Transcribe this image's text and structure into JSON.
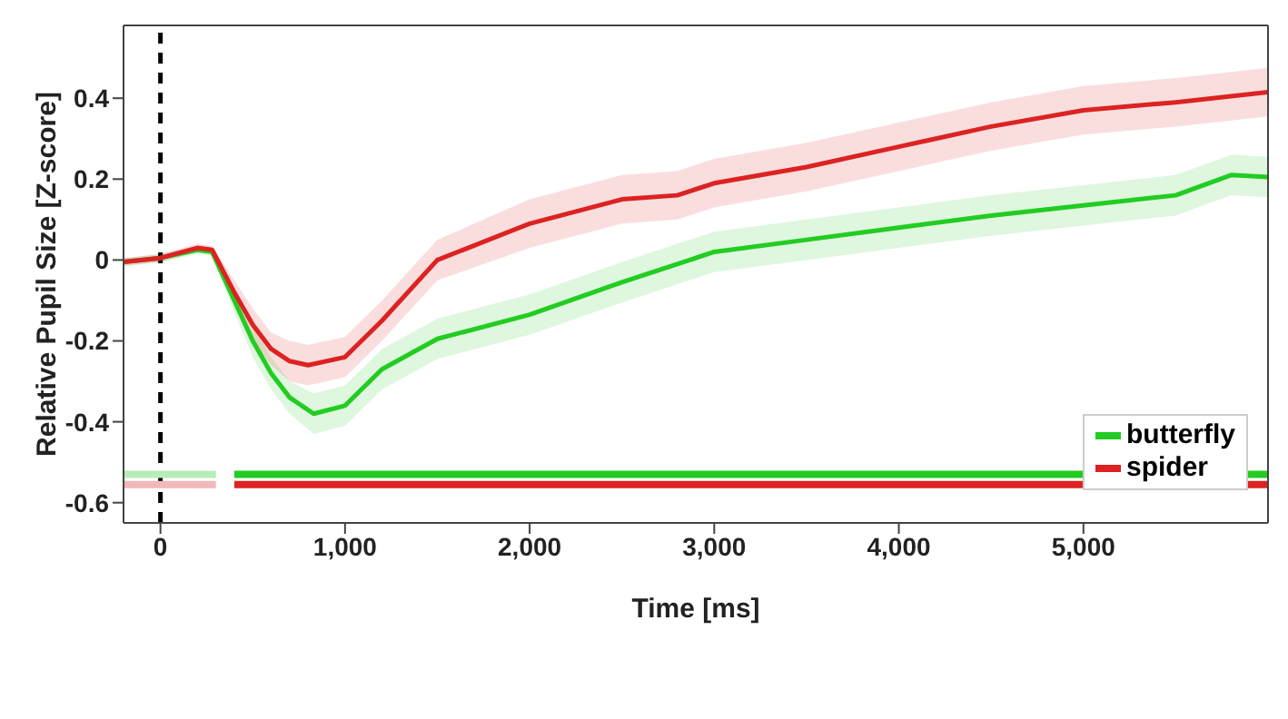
{
  "chart_data": {
    "type": "line",
    "xlabel": "Time [ms]",
    "ylabel": "Relative Pupil Size [Z-score]",
    "xlim": [
      -200,
      6000
    ],
    "xticks": [
      {
        "value": 0,
        "label": "0"
      },
      {
        "value": 1000,
        "label": "1,000"
      },
      {
        "value": 2000,
        "label": "2,000"
      },
      {
        "value": 3000,
        "label": "3,000"
      },
      {
        "value": 4000,
        "label": "4,000"
      },
      {
        "value": 5000,
        "label": "5,000"
      }
    ],
    "ylim": [
      -0.65,
      0.58
    ],
    "yticks": [
      -0.6,
      -0.4,
      -0.2,
      0,
      0.2,
      0.4
    ],
    "grid": false,
    "legend": "right",
    "line_style": "solid",
    "marker": "none",
    "ref_lines": [
      {
        "axis": "x",
        "value": 0,
        "color": "#000000",
        "line_style": "dashed"
      }
    ],
    "series": [
      {
        "name": "butterfly",
        "color": "#22cc22",
        "x": [
          -200,
          0,
          200,
          280,
          400,
          500,
          600,
          700,
          830,
          1000,
          1200,
          1500,
          2000,
          2500,
          3000,
          3500,
          4000,
          4500,
          5000,
          5500,
          5800,
          6000
        ],
        "values": [
          -0.005,
          0.005,
          0.025,
          0.02,
          -0.1,
          -0.2,
          -0.28,
          -0.34,
          -0.38,
          -0.36,
          -0.27,
          -0.195,
          -0.135,
          -0.055,
          0.02,
          0.05,
          0.08,
          0.11,
          0.135,
          0.16,
          0.21,
          0.205
        ],
        "lower": [
          -0.015,
          -0.005,
          0.015,
          0.01,
          -0.13,
          -0.24,
          -0.32,
          -0.38,
          -0.43,
          -0.41,
          -0.32,
          -0.245,
          -0.185,
          -0.105,
          -0.03,
          0.0,
          0.03,
          0.06,
          0.085,
          0.11,
          0.16,
          0.155
        ],
        "upper": [
          0.005,
          0.015,
          0.035,
          0.03,
          -0.07,
          -0.16,
          -0.24,
          -0.3,
          -0.33,
          -0.31,
          -0.22,
          -0.145,
          -0.085,
          -0.005,
          0.07,
          0.1,
          0.13,
          0.16,
          0.185,
          0.21,
          0.26,
          0.255
        ]
      },
      {
        "name": "spider",
        "color": "#dd2222",
        "x": [
          -200,
          0,
          200,
          280,
          400,
          500,
          600,
          700,
          800,
          1000,
          1200,
          1500,
          2000,
          2500,
          2800,
          3000,
          3500,
          4000,
          4500,
          5000,
          5500,
          6000
        ],
        "values": [
          -0.005,
          0.005,
          0.03,
          0.025,
          -0.08,
          -0.16,
          -0.22,
          -0.25,
          -0.26,
          -0.24,
          -0.15,
          0.0,
          0.09,
          0.15,
          0.16,
          0.19,
          0.23,
          0.28,
          0.33,
          0.37,
          0.39,
          0.415
        ],
        "lower": [
          -0.015,
          -0.005,
          0.02,
          0.015,
          -0.11,
          -0.2,
          -0.26,
          -0.3,
          -0.31,
          -0.29,
          -0.2,
          -0.05,
          0.03,
          0.09,
          0.1,
          0.13,
          0.17,
          0.22,
          0.27,
          0.31,
          0.33,
          0.355
        ],
        "upper": [
          0.005,
          0.015,
          0.04,
          0.035,
          -0.05,
          -0.12,
          -0.18,
          -0.2,
          -0.21,
          -0.19,
          -0.1,
          0.05,
          0.15,
          0.21,
          0.22,
          0.25,
          0.29,
          0.34,
          0.39,
          0.43,
          0.45,
          0.475
        ]
      },
      {
        "color": "#b8ecb8",
        "x": [
          -200,
          300
        ],
        "values": [
          -0.53,
          -0.53
        ]
      },
      {
        "color": "#22cc22",
        "x": [
          400,
          6000
        ],
        "values": [
          -0.53,
          -0.53
        ]
      },
      {
        "color": "#f0b8b8",
        "x": [
          -200,
          300
        ],
        "values": [
          -0.555,
          -0.555
        ]
      },
      {
        "color": "#dd2222",
        "x": [
          400,
          6000
        ],
        "values": [
          -0.555,
          -0.555
        ]
      }
    ]
  }
}
